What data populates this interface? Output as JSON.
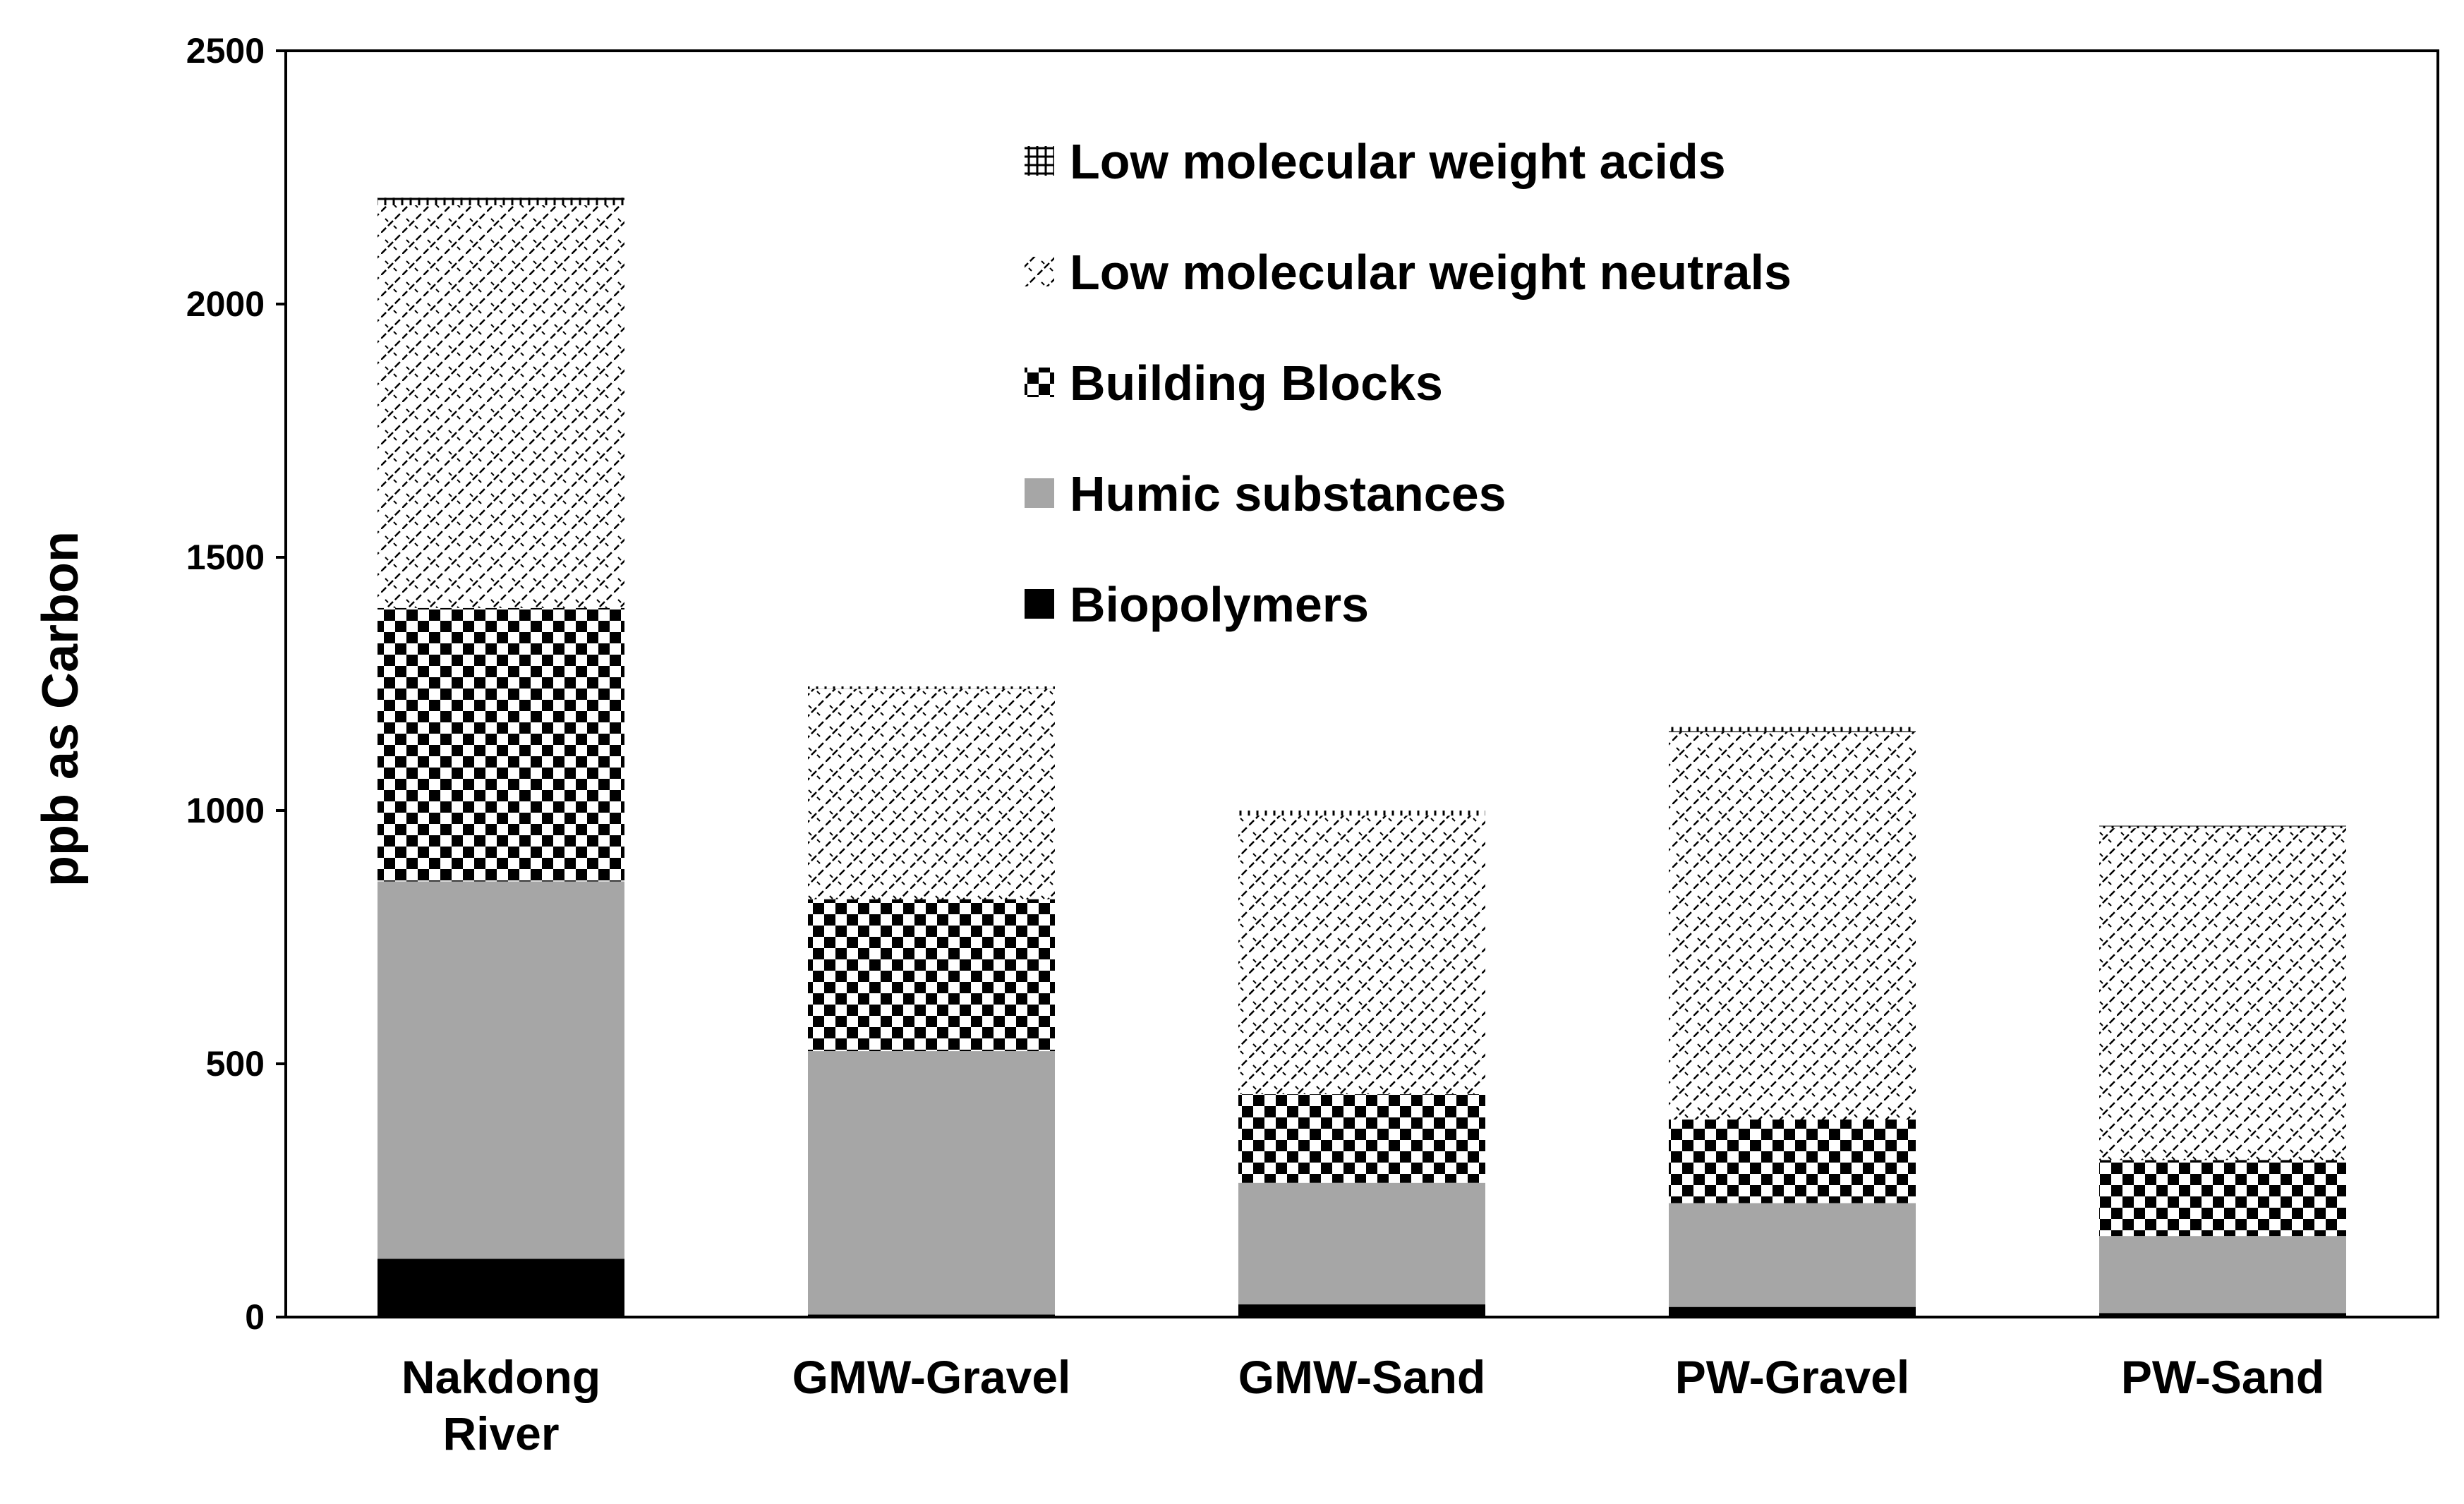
{
  "chart_data": {
    "type": "bar",
    "stacked": true,
    "ylabel": "ppb as Carbon",
    "ylim": [
      0,
      2500
    ],
    "yticks": [
      0,
      500,
      1000,
      1500,
      2000,
      2500
    ],
    "grid": false,
    "legend_position": "top-center",
    "categories": [
      [
        "Nakdong",
        "River"
      ],
      [
        "GMW-Gravel"
      ],
      [
        "GMW-Sand"
      ],
      [
        "PW-Gravel"
      ],
      [
        "PW-Sand"
      ]
    ],
    "series": [
      {
        "name": "Biopolymers",
        "pattern": "solid-black",
        "values": [
          115,
          5,
          25,
          20,
          8
        ]
      },
      {
        "name": "Humic substances",
        "pattern": "solid-gray",
        "values": [
          745,
          520,
          240,
          205,
          152
        ]
      },
      {
        "name": "Building Blocks",
        "pattern": "checker",
        "values": [
          540,
          300,
          175,
          165,
          150
        ]
      },
      {
        "name": "Low molecular weight neutrals",
        "pattern": "diagonal-hatch",
        "values": [
          795,
          415,
          550,
          765,
          655
        ]
      },
      {
        "name": "Low molecular weight acids",
        "pattern": "grid-hatch",
        "values": [
          15,
          5,
          10,
          10,
          5
        ]
      }
    ],
    "legend_order": [
      4,
      3,
      2,
      1,
      0
    ]
  }
}
